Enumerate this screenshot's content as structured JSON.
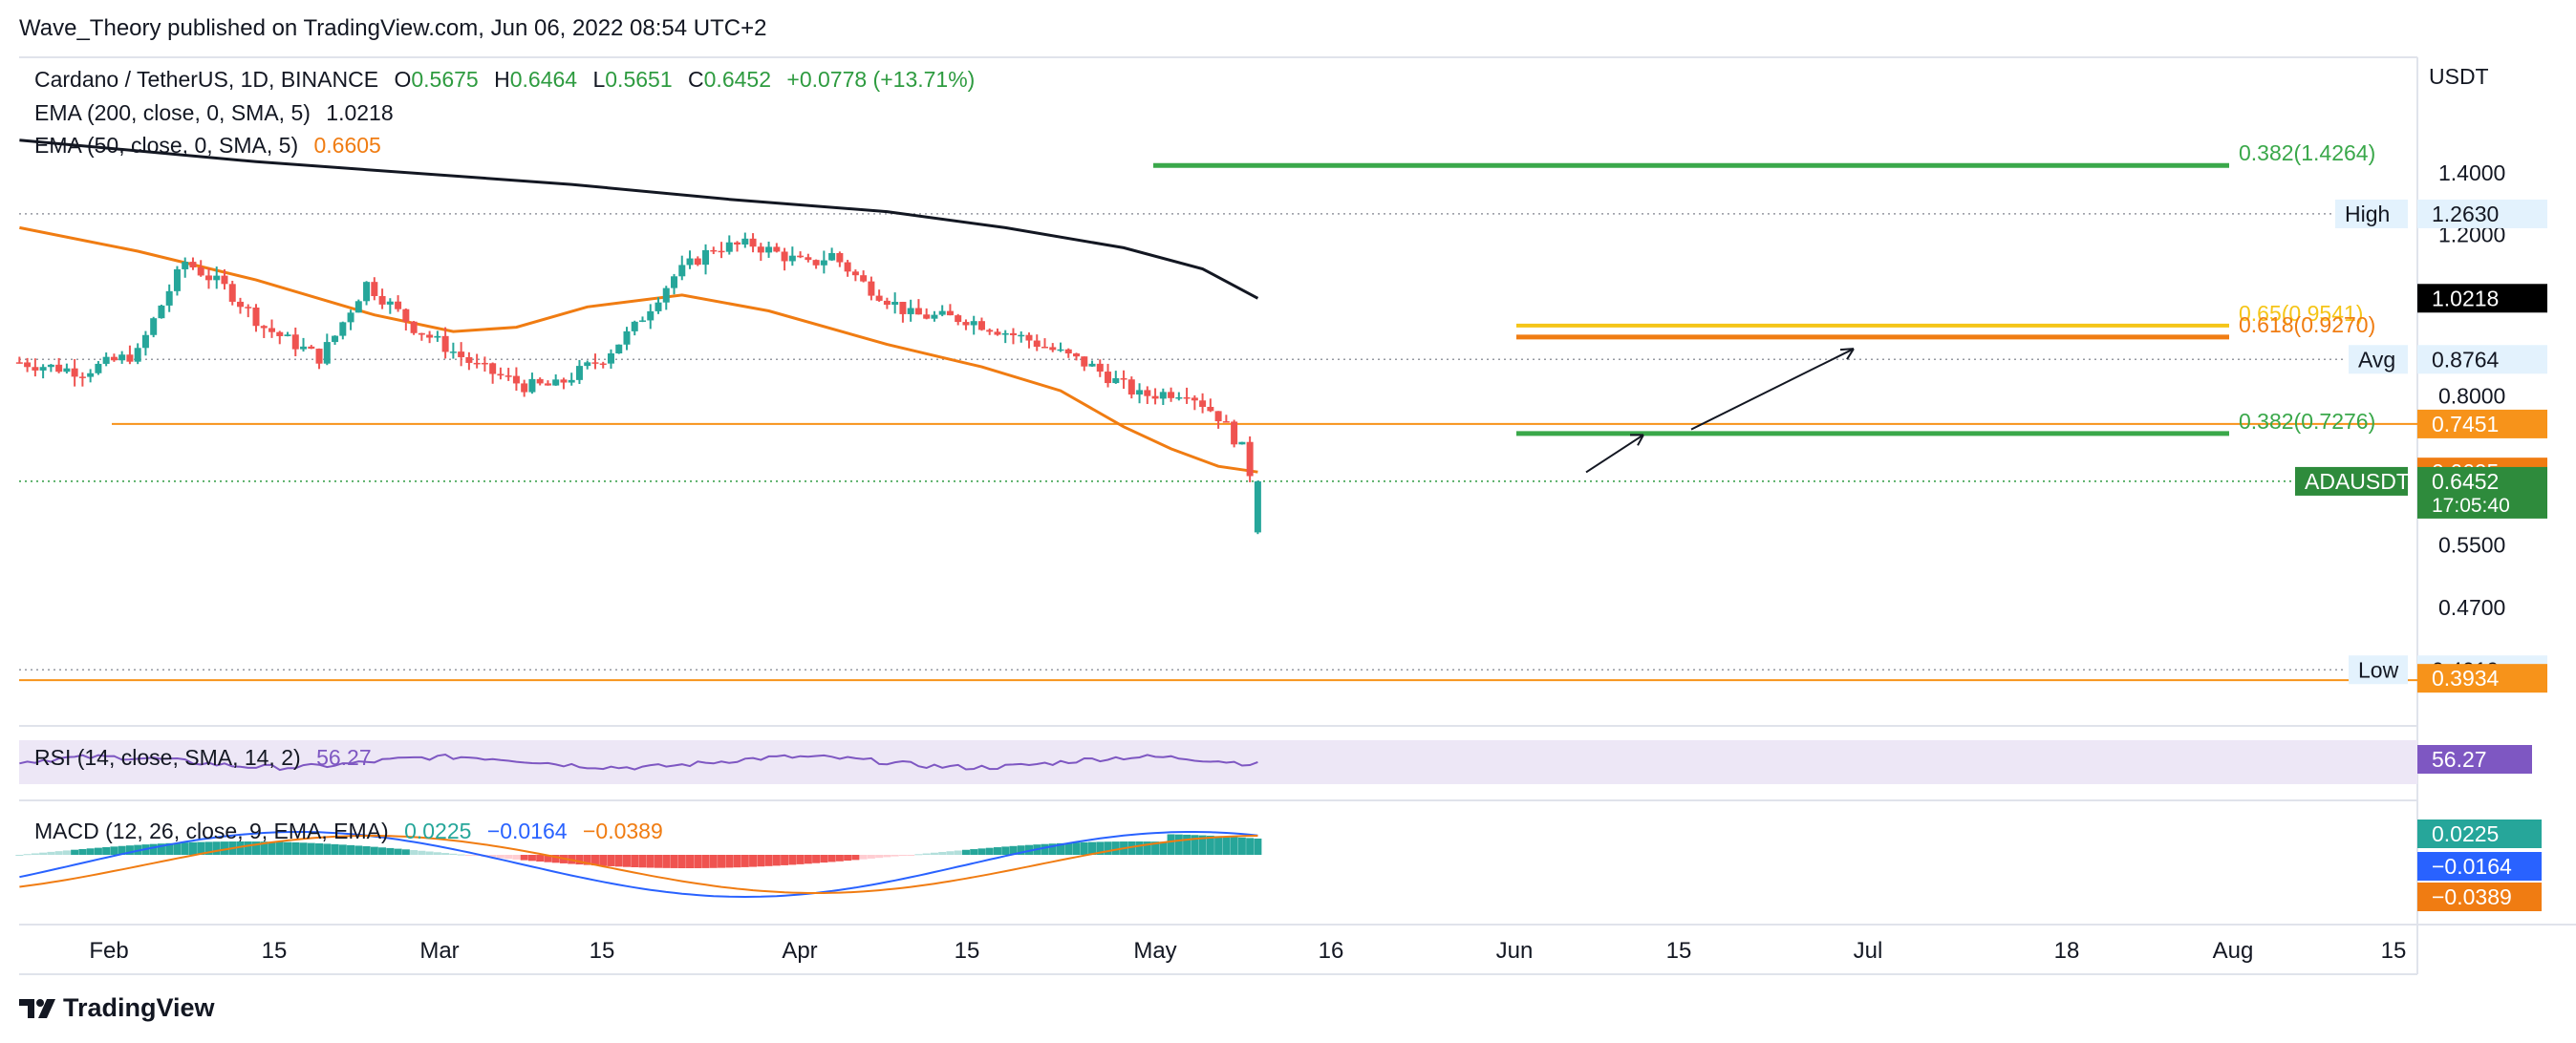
{
  "header": {
    "published": "Wave_Theory published on TradingView.com, Jun 06, 2022 08:54 UTC+2"
  },
  "legend": {
    "symbol": "Cardano / TetherUS, 1D, BINANCE",
    "open_label": "O",
    "open": "0.5675",
    "high_label": "H",
    "high": "0.6464",
    "low_label": "L",
    "low": "0.5651",
    "close_label": "C",
    "close": "0.6452",
    "change": "+0.0778 (+13.71%)",
    "ema200_label": "EMA (200, close, 0, SMA, 5)",
    "ema200_value": "1.0218",
    "ema50_label": "EMA (50, close, 0, SMA, 5)",
    "ema50_value": "0.6605",
    "rsi_label": "RSI (14, close, SMA, 14, 2)",
    "rsi_value": "56.27",
    "macd_label": "MACD (12, 26, close, 9, EMA, EMA)",
    "macd_hist": "0.0225",
    "macd_line": "−0.0164",
    "macd_signal": "−0.0389"
  },
  "brand": {
    "name": "TradingView"
  },
  "colors": {
    "up": "#26a69a",
    "down": "#ef5350",
    "ema50": "#f07c12",
    "ema200": "#131722",
    "fib_green": "#3aa84a",
    "fib_gold": "#f5c518"
  },
  "chart_data": {
    "type": "candlestick",
    "symbol": "ADAUSDT",
    "interval": "1D",
    "y_scale": "log",
    "ylim": [
      0.3934,
      1.5
    ],
    "x_ticks": [
      "Feb",
      "15",
      "Mar",
      "15",
      "Apr",
      "15",
      "May",
      "16",
      "Jun",
      "15",
      "Jul",
      "18",
      "Aug",
      "15"
    ],
    "price_ticks": [
      "1.4000",
      "1.2000",
      "0.8000",
      "0.5500",
      "0.4700"
    ],
    "price_labels": [
      {
        "name": "High",
        "value": "1.2630"
      },
      {
        "name": "",
        "value": "1.0218"
      },
      {
        "name": "Avg",
        "value": "0.8764"
      },
      {
        "name": "",
        "value": "0.7451"
      },
      {
        "name": "",
        "value": "0.6605"
      },
      {
        "name": "ADAUSDT",
        "value": "0.6452",
        "countdown": "17:05:40"
      },
      {
        "name": "Low",
        "value": "0.4019"
      },
      {
        "name": "",
        "value": "0.3934"
      }
    ],
    "axis_unit": "USDT",
    "fib_levels": [
      {
        "label": "0.382(1.4264)",
        "value": 1.4264
      },
      {
        "label": "0.65(0.9541)",
        "value": 0.9541
      },
      {
        "label": "0.618(0.9270)",
        "value": 0.927
      },
      {
        "label": "0.382(0.7276)",
        "value": 0.7276
      }
    ],
    "support_level": 0.7451,
    "high": 1.263,
    "avg": 0.8764,
    "low": 0.4019,
    "candles_ohlc_sample_last": {
      "o": 0.5675,
      "h": 0.6464,
      "l": 0.5651,
      "c": 0.6452
    },
    "ema200_last": 1.0218,
    "ema50_last": 0.6605,
    "rsi_last": 56.27,
    "macd": {
      "hist": 0.0225,
      "macd": -0.0164,
      "signal": -0.0389
    }
  }
}
